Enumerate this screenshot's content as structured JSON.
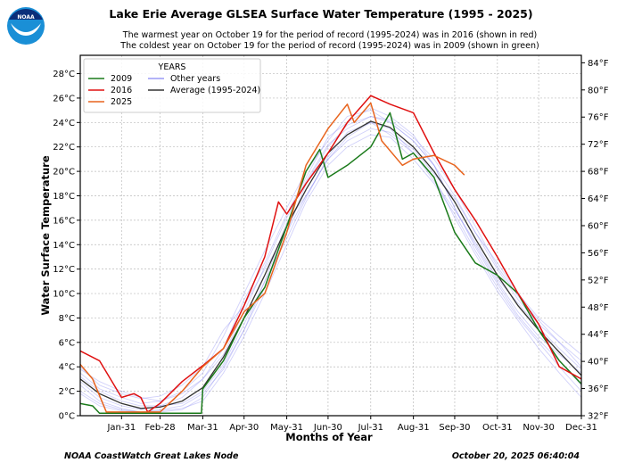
{
  "logo_text": "NOAA",
  "chart_data": {
    "type": "line",
    "title": "Lake Erie Average GLSEA Surface Water Temperature (1995 - 2025)",
    "subtitle": [
      "The warmest year on October 19 for the period of record (1995-2024) was in 2016 (shown in red)",
      "The coldest year on October 19 for the period of record (1995-2024) was in 2009 (shown in green)"
    ],
    "xlabel": "Months of Year",
    "ylabel": "Water Surface Temperature",
    "xlim": [
      1,
      365
    ],
    "ylim": [
      0,
      29.5
    ],
    "grid": true,
    "x_ticks": [
      {
        "day": 31,
        "label": "Jan-31"
      },
      {
        "day": 59,
        "label": "Feb-28"
      },
      {
        "day": 90,
        "label": "Mar-31"
      },
      {
        "day": 120,
        "label": "Apr-30"
      },
      {
        "day": 151,
        "label": "May-31"
      },
      {
        "day": 181,
        "label": "Jun-30"
      },
      {
        "day": 212,
        "label": "Jul-31"
      },
      {
        "day": 243,
        "label": "Aug-31"
      },
      {
        "day": 273,
        "label": "Sep-30"
      },
      {
        "day": 304,
        "label": "Oct-31"
      },
      {
        "day": 334,
        "label": "Nov-30"
      },
      {
        "day": 365,
        "label": "Dec-31"
      }
    ],
    "y_ticks_c": [
      0,
      2,
      4,
      6,
      8,
      10,
      12,
      14,
      16,
      18,
      20,
      22,
      24,
      26,
      28
    ],
    "y_tick_suffix_c": "°C",
    "y_ticks_f": [
      32,
      36,
      40,
      44,
      48,
      52,
      56,
      60,
      64,
      68,
      72,
      76,
      80,
      84
    ],
    "y_tick_suffix_f": "°F",
    "legend": {
      "title": "YEARS",
      "placement": "top-left"
    },
    "grid_days": [
      1,
      15,
      31,
      45,
      59,
      75,
      90,
      105,
      120,
      135,
      151,
      165,
      181,
      195,
      212,
      226,
      243,
      258,
      273,
      288,
      304,
      319,
      334,
      349,
      365
    ],
    "other_years": {
      "name": "Other years",
      "color": "#7b7bf0",
      "series": [
        [
          3.5,
          2.2,
          1.5,
          1.0,
          1.2,
          2.0,
          3.5,
          6.5,
          10.0,
          13.5,
          17.0,
          20.0,
          22.5,
          24.5,
          25.0,
          24.0,
          22.5,
          20.5,
          18.0,
          15.0,
          12.0,
          9.5,
          7.5,
          6.0,
          4.0
        ],
        [
          2.0,
          1.0,
          0.5,
          0.3,
          0.4,
          0.6,
          1.2,
          3.5,
          6.5,
          10.0,
          14.0,
          17.5,
          20.5,
          22.0,
          23.0,
          22.8,
          21.0,
          19.0,
          16.5,
          13.5,
          10.5,
          8.0,
          6.0,
          4.0,
          2.0
        ],
        [
          2.8,
          1.5,
          0.8,
          0.5,
          0.8,
          1.5,
          3.0,
          5.5,
          9.5,
          12.5,
          16.5,
          19.5,
          22.8,
          24.0,
          25.2,
          24.5,
          23.0,
          20.5,
          17.0,
          14.0,
          11.0,
          8.5,
          6.5,
          5.0,
          3.5
        ],
        [
          4.0,
          2.5,
          1.8,
          1.4,
          1.6,
          2.5,
          4.0,
          7.0,
          9.0,
          12.0,
          15.0,
          18.0,
          21.0,
          22.5,
          23.5,
          23.2,
          21.8,
          19.8,
          17.8,
          15.0,
          12.5,
          10.0,
          8.0,
          6.5,
          5.0
        ],
        [
          2.5,
          1.2,
          0.6,
          0.3,
          0.3,
          0.5,
          1.5,
          4.0,
          7.0,
          10.5,
          15.0,
          19.0,
          22.0,
          23.8,
          24.5,
          24.0,
          22.5,
          20.5,
          17.0,
          13.8,
          10.8,
          8.2,
          6.2,
          4.5,
          2.5
        ],
        [
          3.2,
          2.0,
          1.2,
          0.8,
          0.8,
          1.0,
          2.0,
          4.2,
          7.5,
          11.0,
          15.8,
          18.0,
          21.0,
          22.8,
          24.0,
          23.0,
          21.5,
          19.2,
          16.8,
          14.2,
          11.2,
          9.2,
          7.2,
          5.5,
          3.8
        ],
        [
          3.8,
          2.8,
          2.0,
          1.5,
          1.2,
          1.8,
          3.0,
          5.0,
          8.5,
          12.2,
          16.2,
          19.2,
          22.2,
          23.5,
          24.5,
          24.2,
          22.8,
          21.0,
          18.5,
          15.5,
          12.2,
          9.8,
          7.8,
          6.0,
          4.5
        ],
        [
          1.8,
          0.8,
          0.4,
          0.3,
          0.5,
          0.8,
          1.8,
          3.8,
          7.0,
          11.0,
          14.5,
          17.8,
          21.2,
          23.2,
          24.0,
          23.5,
          21.5,
          19.5,
          16.2,
          13.2,
          10.2,
          7.8,
          5.5,
          3.5,
          1.5
        ]
      ]
    },
    "average": {
      "name": "Average (1995-2024)",
      "color": "#333333",
      "values": [
        3.0,
        1.8,
        1.0,
        0.6,
        0.7,
        1.2,
        2.3,
        4.8,
        8.0,
        11.5,
        15.5,
        18.5,
        21.5,
        23.0,
        24.1,
        23.6,
        22.0,
        20.0,
        17.5,
        14.5,
        11.5,
        9.0,
        7.0,
        5.2,
        3.3
      ]
    },
    "series": [
      {
        "name": "2009",
        "color": "#1a7a1a",
        "x": [
          1,
          10,
          15,
          59,
          89,
          90,
          105,
          120,
          135,
          151,
          165,
          175,
          181,
          195,
          212,
          226,
          235,
          243,
          258,
          273,
          288,
          304,
          319,
          334,
          349,
          365
        ],
        "y": [
          1.0,
          0.8,
          0.2,
          0.2,
          0.2,
          2.2,
          4.5,
          8.0,
          10.5,
          15.5,
          20.0,
          21.8,
          19.5,
          20.5,
          22.0,
          24.8,
          21.0,
          21.5,
          19.5,
          15.0,
          12.5,
          11.5,
          10.0,
          7.0,
          4.5,
          2.6
        ]
      },
      {
        "name": "2016",
        "color": "#e01010",
        "x": [
          1,
          15,
          31,
          40,
          45,
          50,
          59,
          75,
          90,
          105,
          120,
          135,
          145,
          151,
          165,
          181,
          195,
          212,
          226,
          243,
          258,
          273,
          288,
          304,
          319,
          334,
          349,
          365
        ],
        "y": [
          5.3,
          4.5,
          1.5,
          1.8,
          1.5,
          0.3,
          1.0,
          2.8,
          4.1,
          5.5,
          9.0,
          13.0,
          17.5,
          16.5,
          19.0,
          21.5,
          24.0,
          26.2,
          25.5,
          24.8,
          21.5,
          18.5,
          16.0,
          13.0,
          10.0,
          7.5,
          4.0,
          3.0
        ]
      },
      {
        "name": "2025",
        "color": "#e8641e",
        "x": [
          1,
          10,
          20,
          59,
          75,
          90,
          105,
          120,
          135,
          151,
          165,
          181,
          195,
          200,
          212,
          220,
          235,
          243,
          258,
          273,
          280
        ],
        "y": [
          4.2,
          3.0,
          0.3,
          0.3,
          2.0,
          4.0,
          5.5,
          8.5,
          10.0,
          15.0,
          20.5,
          23.5,
          25.5,
          24.0,
          25.6,
          22.5,
          20.5,
          21.0,
          21.3,
          20.5,
          19.7
        ]
      }
    ]
  },
  "footer": {
    "source": "NOAA CoastWatch Great Lakes Node",
    "timestamp": "October 20, 2025 06:40:04"
  }
}
